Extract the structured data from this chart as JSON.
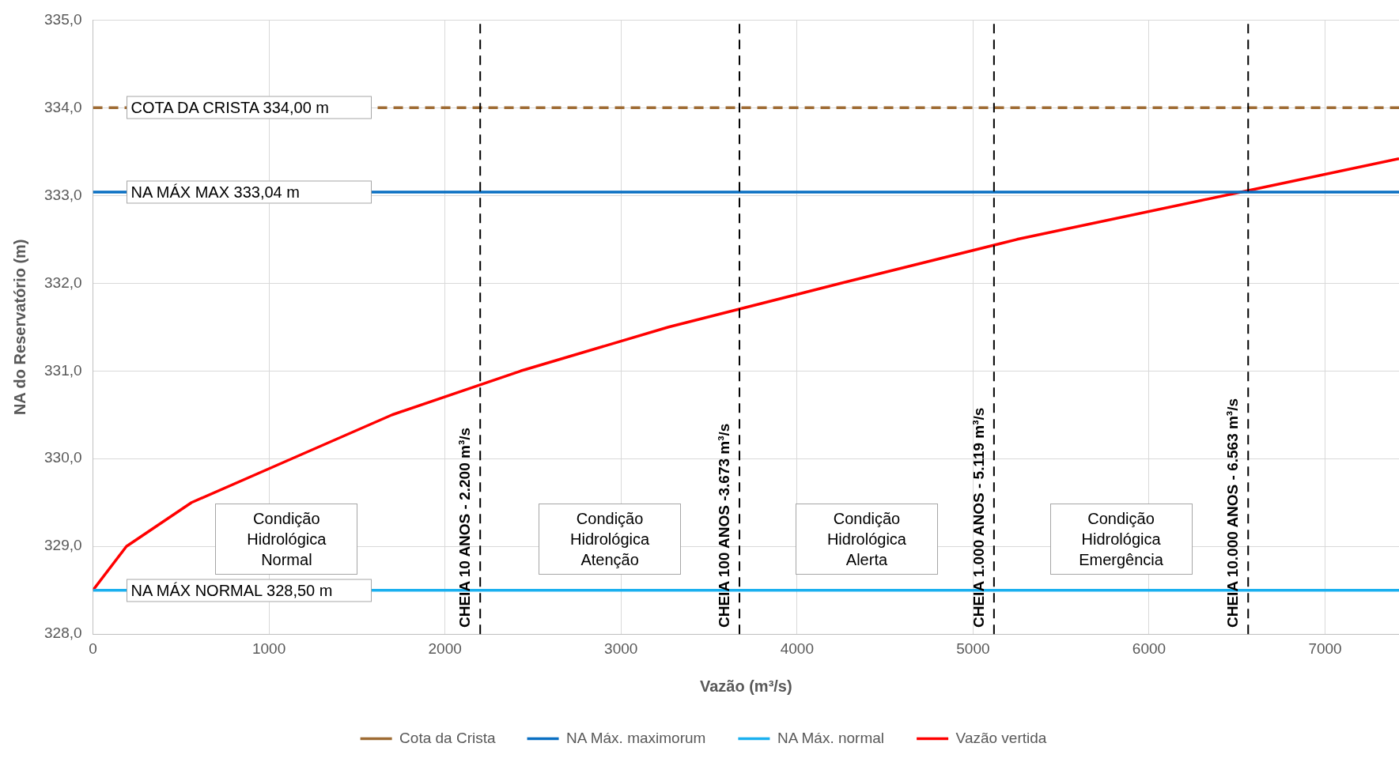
{
  "chart_data": {
    "type": "line",
    "xlabel": "Vazão (m³/s)",
    "ylabel": "NA do Reservatório (m)",
    "xlim": [
      0,
      7420
    ],
    "xticks": [
      0,
      1000,
      2000,
      3000,
      4000,
      5000,
      6000,
      7000
    ],
    "ylim": [
      328,
      335
    ],
    "yticks": [
      {
        "value": 328,
        "label": "328,0"
      },
      {
        "value": 329,
        "label": "329,0"
      },
      {
        "value": 330,
        "label": "330,0"
      },
      {
        "value": 331,
        "label": "331,0"
      },
      {
        "value": 332,
        "label": "332,0"
      },
      {
        "value": 333,
        "label": "333,0"
      },
      {
        "value": 334,
        "label": "334,0"
      },
      {
        "value": 335,
        "label": "335,0"
      }
    ],
    "grid": true,
    "legend": "bottom",
    "marker": "none",
    "series": [
      {
        "name": "Cota da Crista",
        "color": "#9e6b33",
        "line_style": "dashed",
        "x": [
          0,
          7420
        ],
        "values": [
          334,
          334
        ]
      },
      {
        "name": "NA Máx. maximorum",
        "color": "#0a6fc2",
        "x": [
          0,
          7420
        ],
        "values": [
          333.04,
          333.04
        ]
      },
      {
        "name": "NA Máx. normal",
        "color": "#1ab0ef",
        "x": [
          0,
          7420
        ],
        "values": [
          328.5,
          328.5
        ]
      },
      {
        "name": "Vazão vertida",
        "color": "#ff0000",
        "x": [
          0,
          190,
          560,
          1130,
          1700,
          2430,
          3270,
          4250,
          5250,
          6570,
          7420
        ],
        "values": [
          328.5,
          329.0,
          329.5,
          330.0,
          330.5,
          331.0,
          331.5,
          332.0,
          332.5,
          333.06,
          333.42
        ]
      }
    ],
    "ref_lines": [
      {
        "axis": "x",
        "value": 2200,
        "label": "CHEIA 10 ANOS  - 2.200 m³/s",
        "color": "#000000",
        "line_style": "dashed"
      },
      {
        "axis": "x",
        "value": 3673,
        "label": "CHEIA 100 ANOS -3.673 m³/s",
        "color": "#000000",
        "line_style": "dashed"
      },
      {
        "axis": "x",
        "value": 5119,
        "label": "CHEIA 1.000 ANOS - 5.119 m³/s",
        "color": "#000000",
        "line_style": "dashed"
      },
      {
        "axis": "x",
        "value": 6563,
        "label": "CHEIA 10.000 ANOS - 6.563 m³/s",
        "color": "#000000",
        "line_style": "dashed"
      }
    ],
    "annotations": [
      {
        "text": "COTA DA CRISTA 334,00 m",
        "y": 334
      },
      {
        "text": "NA MÁX MAX 333,04 m",
        "y": 333.04
      },
      {
        "text": "NA MÁX NORMAL 328,50 m",
        "y": 328.5
      },
      "Condição Hidrológica Normal",
      "Condição Hidrológica Atenção",
      "Condição Hidrológica Alerta",
      "Condição Hidrológica Emergência"
    ]
  }
}
